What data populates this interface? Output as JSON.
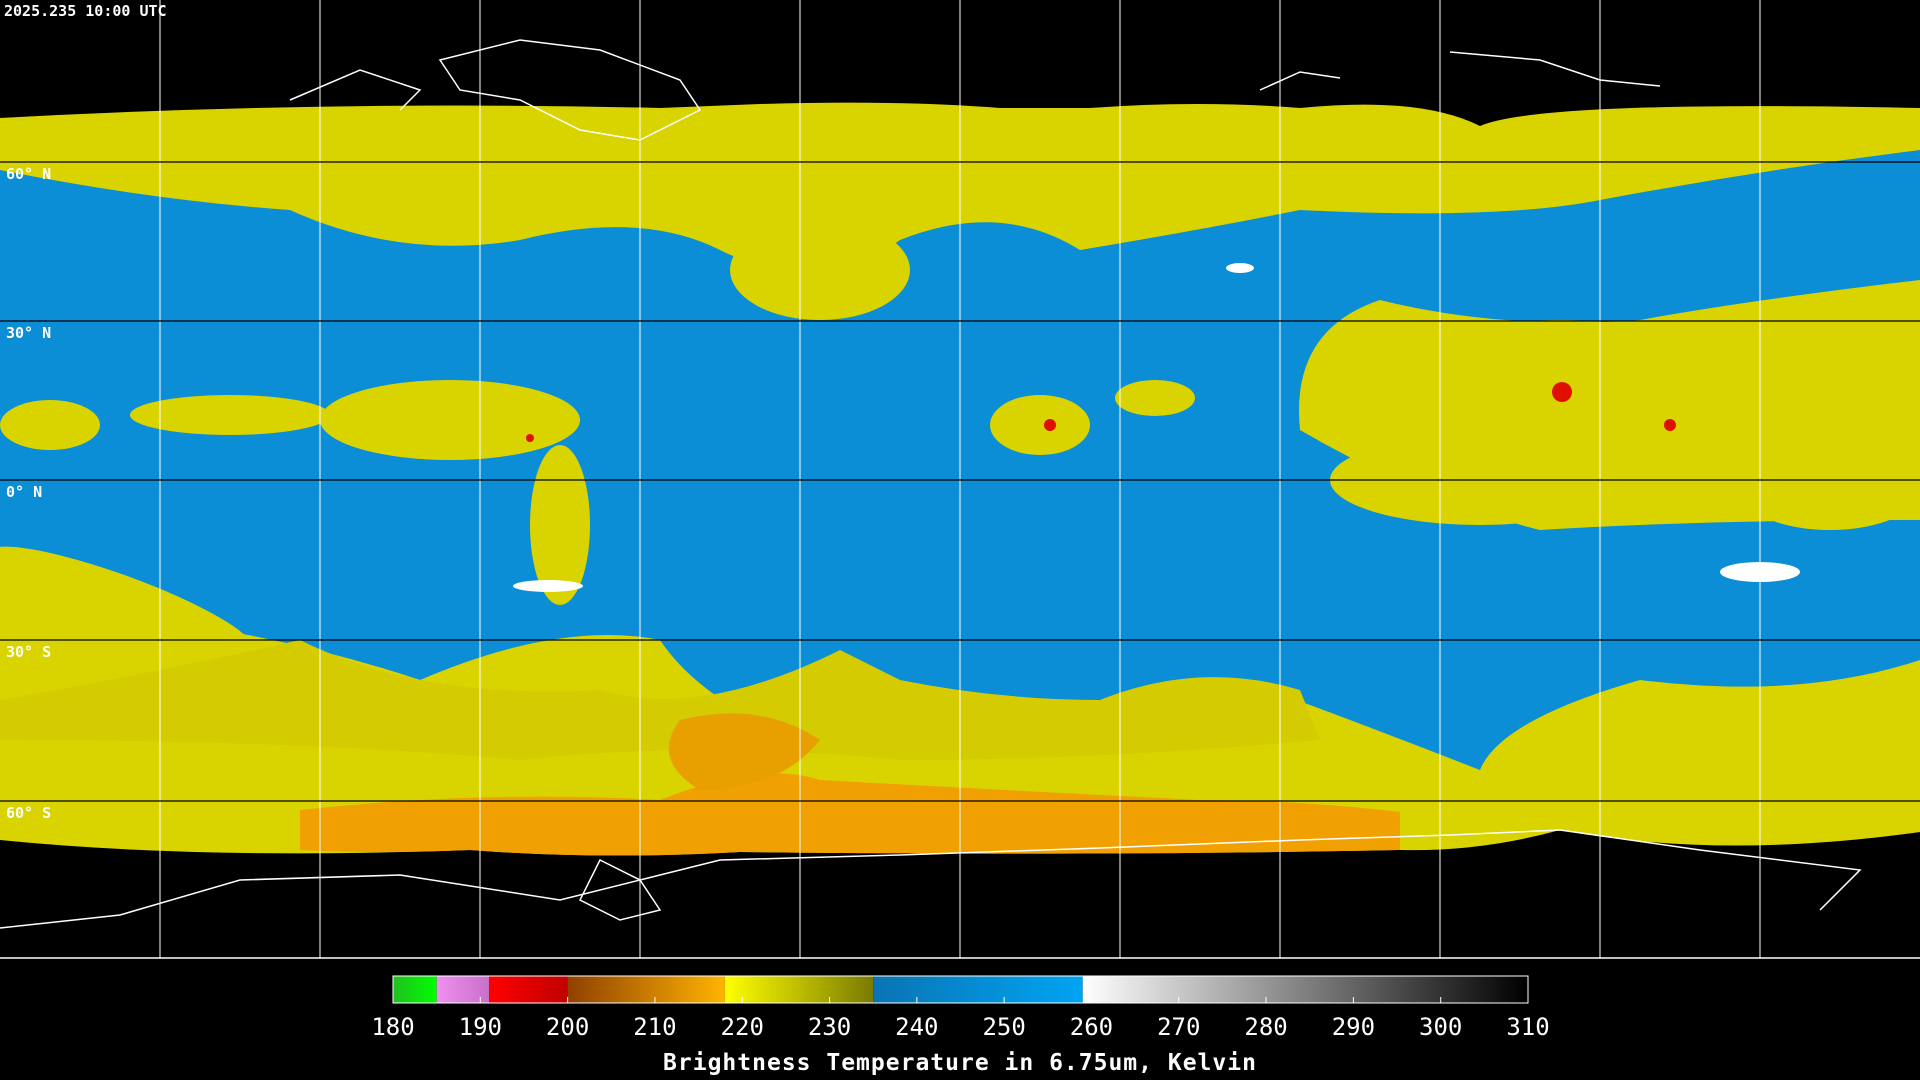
{
  "header": {
    "timestamp": "2025.235 10:00 UTC"
  },
  "map": {
    "lat_labels": [
      "60° N",
      "30° N",
      "0° N",
      "30° S",
      "60° S"
    ]
  },
  "colorbar": {
    "title": "Brightness Temperature in 6.75um, Kelvin",
    "range": [
      180,
      310
    ],
    "ticks": [
      180,
      190,
      200,
      210,
      220,
      230,
      240,
      250,
      260,
      270,
      280,
      290,
      300,
      310
    ],
    "segments": [
      {
        "from": 180,
        "to": 185,
        "colors": [
          "#20c020",
          "#00ff00"
        ]
      },
      {
        "from": 185,
        "to": 191,
        "colors": [
          "#f090f0",
          "#c870c8"
        ]
      },
      {
        "from": 191,
        "to": 200,
        "colors": [
          "#ff0000",
          "#c00000"
        ]
      },
      {
        "from": 200,
        "to": 218,
        "colors": [
          "#904000",
          "#ffb400"
        ]
      },
      {
        "from": 218,
        "to": 235,
        "colors": [
          "#ffff00",
          "#7a7a00"
        ]
      },
      {
        "from": 235,
        "to": 259,
        "colors": [
          "#0a74b4",
          "#00a4f4"
        ]
      },
      {
        "from": 259,
        "to": 310,
        "colors": [
          "#ffffff",
          "#000000"
        ]
      }
    ]
  }
}
